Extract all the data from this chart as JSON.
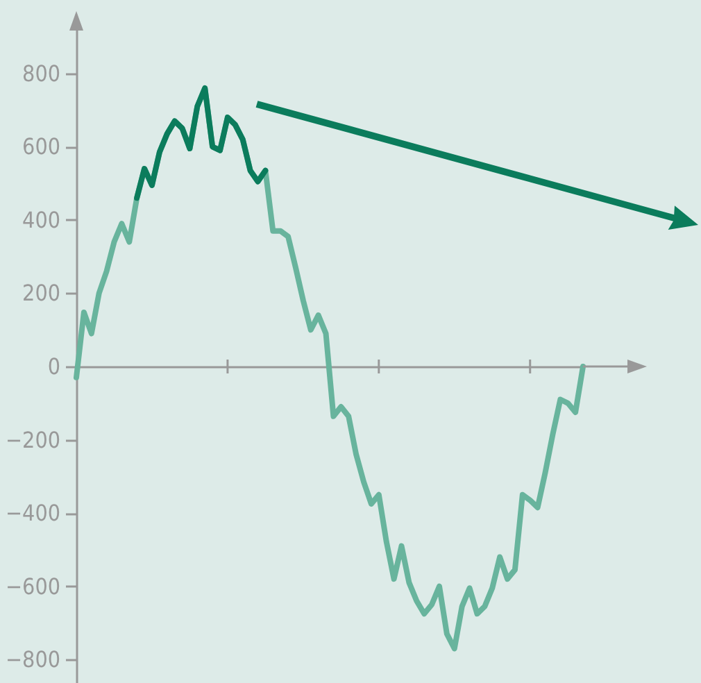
{
  "chart_data": {
    "type": "line",
    "categories": [
      null,
      null,
      null,
      null,
      null,
      null,
      null,
      null,
      null,
      null,
      null,
      null,
      null,
      null,
      null,
      null,
      null,
      null,
      null,
      null,
      null,
      null,
      null,
      null,
      null,
      null,
      null,
      null,
      null,
      null,
      null,
      null,
      null,
      null,
      null,
      null,
      null,
      null,
      null,
      null,
      null,
      null,
      null,
      null,
      null,
      null,
      null,
      null,
      null,
      null,
      null,
      null,
      null,
      null,
      null,
      null,
      null,
      null,
      null,
      null,
      null,
      null,
      null,
      null,
      null,
      null,
      null,
      null
    ],
    "series": [
      {
        "color": "#68b49d",
        "values": [
          -30,
          148,
          90,
          200,
          260,
          340,
          390,
          340,
          460,
          540,
          495,
          585,
          635,
          670,
          650,
          595,
          710,
          760,
          600,
          590,
          680,
          660,
          620,
          535,
          505,
          535,
          370,
          370,
          355,
          270,
          180,
          100,
          140,
          90,
          -136,
          -110,
          -136,
          -240,
          -315,
          -375,
          -350,
          -478,
          -580,
          -490,
          -590,
          -640,
          -675,
          -650,
          -600,
          -730,
          -770,
          -655,
          -605,
          -675,
          -655,
          -605,
          -520,
          -580,
          -555,
          -350,
          -365,
          -385,
          -290,
          -185,
          -90,
          -100,
          -125,
          0
        ]
      },
      {
        "color": "#0b7c5c",
        "values": [
          null,
          null,
          null,
          null,
          null,
          null,
          null,
          null,
          460,
          540,
          495,
          585,
          635,
          670,
          650,
          595,
          710,
          760,
          600,
          590,
          680,
          660,
          620,
          535,
          505,
          535,
          null,
          null,
          null,
          null,
          null,
          null,
          null,
          null,
          null,
          null,
          null,
          null,
          null,
          null,
          null,
          null,
          null,
          null,
          null,
          null,
          null,
          null,
          null,
          null,
          null,
          null,
          null,
          null,
          null,
          null,
          null,
          null,
          null,
          null,
          null,
          null,
          null,
          null,
          null,
          null,
          null,
          null
        ]
      }
    ],
    "ylim": [
      -864,
      955
    ],
    "yticks": [
      -800,
      -600,
      -400,
      -200,
      0,
      200,
      400,
      600,
      800
    ],
    "tick_labels": "y"
  }
}
